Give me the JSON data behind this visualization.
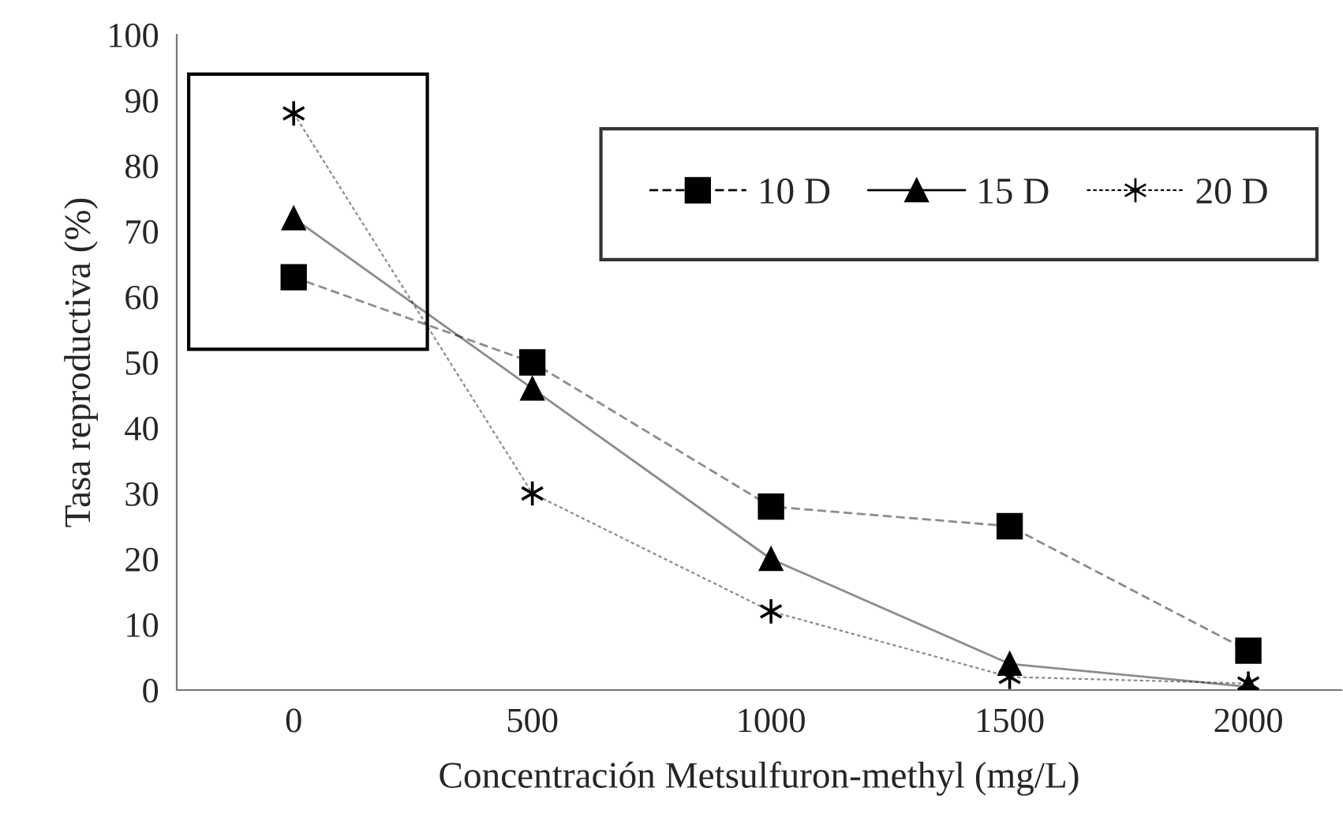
{
  "chart_data": {
    "type": "line",
    "xlabel": "Concentración Metsulfuron-methyl (mg/L)",
    "ylabel": "Tasa reproductiva (%)",
    "categories": [
      "0",
      "500",
      "1000",
      "1500",
      "2000"
    ],
    "series": [
      {
        "name": "10 D",
        "color": "#000000",
        "marker": "square",
        "line_style": "dashed",
        "values": [
          63,
          50,
          28,
          25,
          6
        ]
      },
      {
        "name": "15 D",
        "color": "#000000",
        "marker": "triangle",
        "line_style": "solid",
        "values": [
          72,
          46,
          20,
          4,
          0.5
        ]
      },
      {
        "name": "20 D",
        "color": "#000000",
        "marker": "cross",
        "line_style": "dotted",
        "values": [
          88,
          30,
          12,
          2,
          1
        ]
      }
    ],
    "ylim": [
      0,
      100
    ],
    "yticks": [
      0,
      10,
      20,
      30,
      40,
      50,
      60,
      70,
      80,
      90,
      100
    ],
    "grid": false,
    "legend": "top right"
  }
}
